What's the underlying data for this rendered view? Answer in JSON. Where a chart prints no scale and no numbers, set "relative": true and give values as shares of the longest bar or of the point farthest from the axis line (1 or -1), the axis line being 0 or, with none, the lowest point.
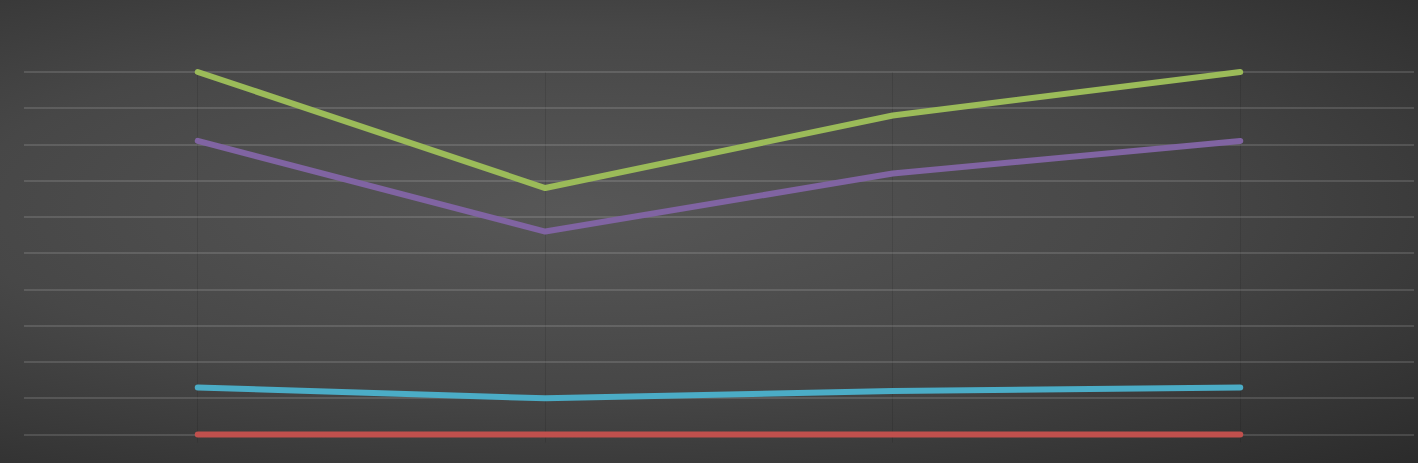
{
  "chart_data": {
    "type": "line",
    "relative": true,
    "categories": [
      null,
      null,
      null,
      null
    ],
    "grid": true,
    "legend": false,
    "marker": "none",
    "line_style": "solid",
    "series": [
      {
        "color": "#9bbb59",
        "values": [
          1,
          0.68,
          0.88,
          1
        ]
      },
      {
        "color": "#8064a2",
        "values": [
          0.81,
          0.56,
          0.72,
          0.81
        ]
      },
      {
        "color": "#4bacc6",
        "values": [
          0.13,
          0.1,
          0.12,
          0.13
        ]
      },
      {
        "color": "#c0504d",
        "values": [
          0,
          0,
          0,
          0
        ]
      }
    ]
  }
}
